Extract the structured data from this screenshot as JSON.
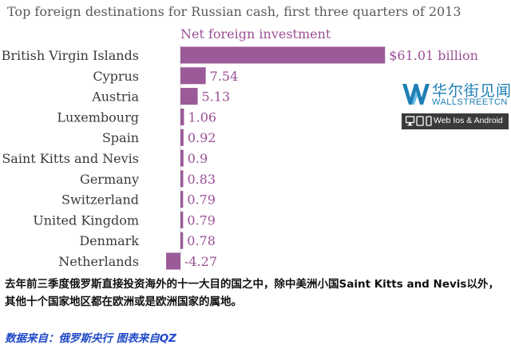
{
  "chart_data": {
    "type": "bar",
    "orientation": "horizontal",
    "title": "Top foreign destinations for Russian cash, first three quarters of 2013",
    "series": [
      {
        "name": "Net foreign investment",
        "values": [
          61.01,
          7.54,
          5.13,
          1.06,
          0.92,
          0.9,
          0.83,
          0.79,
          0.79,
          0.78,
          -4.27
        ],
        "value_labels": [
          "$61.01 billion",
          "7.54",
          "5.13",
          "1.06",
          "0.92",
          "0.9",
          "0.83",
          "0.79",
          "0.79",
          "0.78",
          "-4.27"
        ]
      }
    ],
    "categories": [
      "British Virgin Islands",
      "Cyprus",
      "Austria",
      "Luxembourg",
      "Spain",
      "Saint Kitts and Nevis",
      "Germany",
      "Switzerland",
      "United Kingdom",
      "Denmark",
      "Netherlands"
    ],
    "xlim": [
      -4.27,
      61.01
    ],
    "grid": false,
    "colors": {
      "bar": "#9b5a98",
      "value_label": "#9b4f96",
      "title": "#5a5a5a"
    }
  },
  "watermark": {
    "name_cn": "华尔街见闻",
    "name_en": "WALLSTREETCN",
    "platforms": "Web  Ios & Android",
    "icons": [
      "monitor-icon",
      "tablet-icon",
      "phone-icon"
    ],
    "color": "#1e7fb5"
  },
  "note": "去年前三季度俄罗斯直接投资海外的十一大目的国之中，除中美洲小国Saint Kitts and Nevis以外，其他十个国家地区都在欧洲或是欧洲国家的属地。",
  "source": "数据来自：俄罗斯央行    图表来自QZ"
}
